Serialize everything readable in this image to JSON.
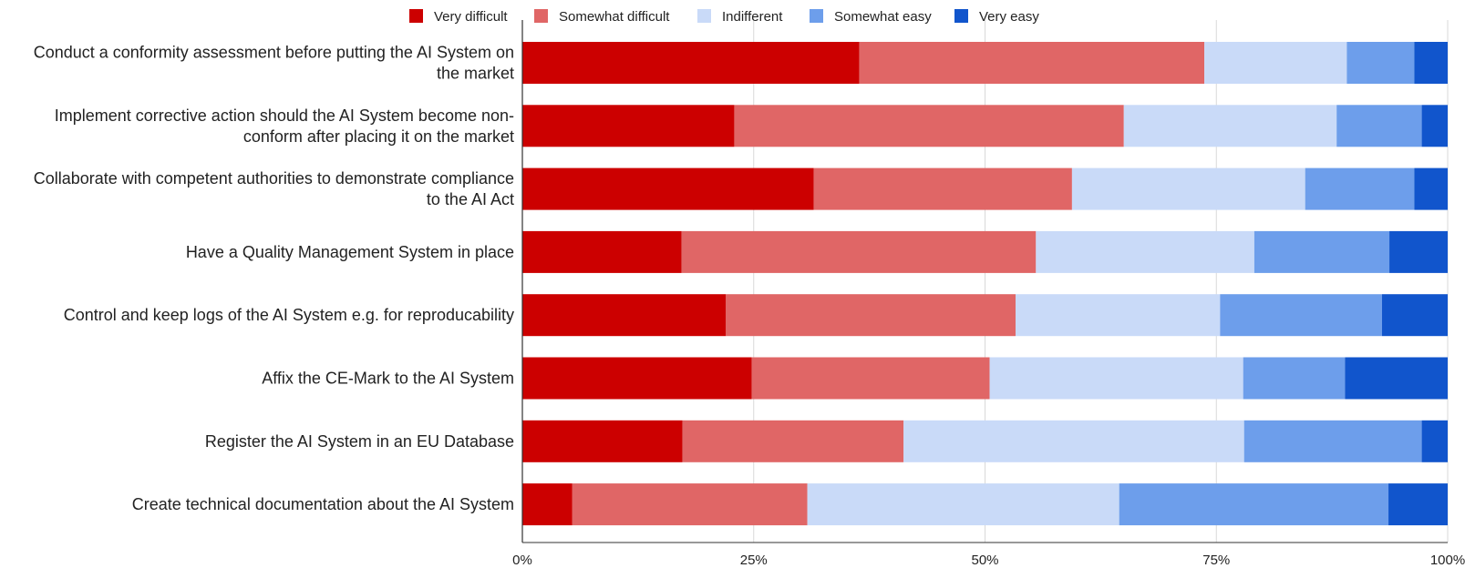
{
  "chart_data": {
    "type": "bar",
    "orientation": "horizontal",
    "stacked": "percent",
    "categories": [
      "Conduct a conformity assessment before putting the AI System on the market",
      "Implement corrective action should the AI System become non-conform after placing it on the market",
      "Collaborate with competent authorities to demonstrate compliance to the AI Act",
      "Have a Quality Management System in place",
      "Control and keep logs of the AI System e.g. for reproducability",
      "Affix the CE-Mark to the AI System",
      "Register the AI System in an EU Database",
      "Create technical documentation about the AI System"
    ],
    "category_lines": [
      [
        "Conduct a conformity assessment before putting the AI System on",
        "the market"
      ],
      [
        "Implement corrective action should the AI System become non-",
        "conform after placing it on the market"
      ],
      [
        "Collaborate with competent authorities to demonstrate compliance",
        "to the AI Act"
      ],
      [
        "Have a Quality Management System in place"
      ],
      [
        "Control and keep logs of the AI System e.g. for reproducability"
      ],
      [
        "Affix the CE-Mark to the AI System"
      ],
      [
        "Register the AI System in an EU Database"
      ],
      [
        "Create technical documentation about the AI System"
      ]
    ],
    "series": [
      {
        "name": "Very difficult",
        "color": "#cc0000",
        "values": [
          36.4,
          22.9,
          31.5,
          17.2,
          22.0,
          24.8,
          17.3,
          5.4
        ]
      },
      {
        "name": "Somewhat difficult",
        "color": "#e06666",
        "values": [
          37.3,
          42.1,
          27.9,
          38.3,
          31.3,
          25.7,
          23.9,
          25.4
        ]
      },
      {
        "name": "Indifferent",
        "color": "#c9daf8",
        "values": [
          15.4,
          23.0,
          25.2,
          23.6,
          22.1,
          27.4,
          36.8,
          33.7
        ]
      },
      {
        "name": "Somewhat easy",
        "color": "#6d9eeb",
        "values": [
          7.3,
          9.2,
          11.8,
          14.6,
          17.5,
          11.0,
          19.2,
          29.1
        ]
      },
      {
        "name": "Very easy",
        "color": "#1155cc",
        "values": [
          3.6,
          2.8,
          3.6,
          6.3,
          7.1,
          11.1,
          2.8,
          6.4
        ]
      }
    ],
    "xlim": [
      0,
      100
    ],
    "xticks": [
      "0%",
      "25%",
      "50%",
      "75%",
      "100%"
    ],
    "grid": true,
    "legend_position": "top",
    "title": "",
    "xlabel": "",
    "ylabel": ""
  }
}
